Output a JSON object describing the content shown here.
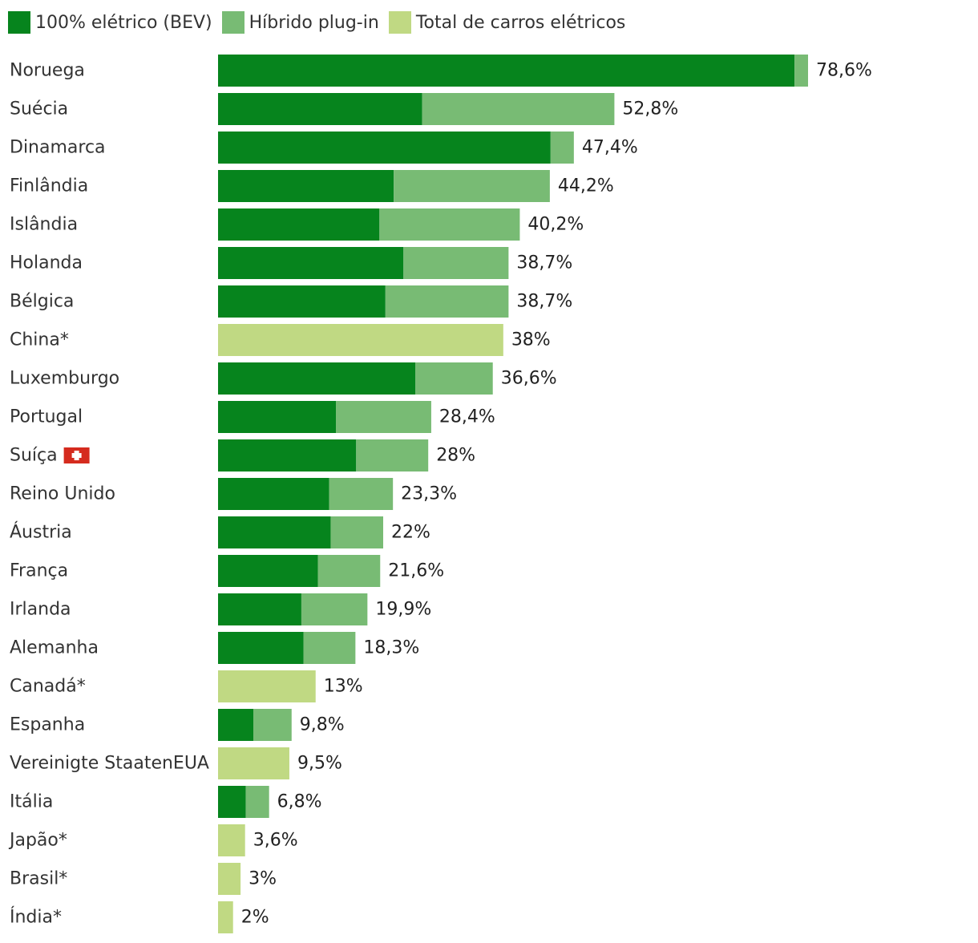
{
  "chart_data": {
    "type": "bar",
    "orientation": "horizontal",
    "stacked": true,
    "legend_position": "top-left",
    "grid": false,
    "xlim": [
      0,
      80
    ],
    "legend": [
      {
        "key": "bev",
        "label": "100% elétrico (BEV)",
        "color": "#06841d"
      },
      {
        "key": "phev",
        "label": "Híbrido plug-in",
        "color": "#78bb74"
      },
      {
        "key": "total",
        "label": "Total de carros elétricos",
        "color": "#c0d983"
      }
    ],
    "rows": [
      {
        "category": "Noruega",
        "bev": 76.8,
        "phev": 1.8,
        "total": null,
        "label": "78,6%",
        "flag": null
      },
      {
        "category": "Suécia",
        "bev": 27.2,
        "phev": 25.6,
        "total": null,
        "label": "52,8%",
        "flag": null
      },
      {
        "category": "Dinamarca",
        "bev": 44.3,
        "phev": 3.1,
        "total": null,
        "label": "47,4%",
        "flag": null
      },
      {
        "category": "Finlândia",
        "bev": 23.4,
        "phev": 20.8,
        "total": null,
        "label": "44,2%",
        "flag": null
      },
      {
        "category": "Islândia",
        "bev": 21.5,
        "phev": 18.7,
        "total": null,
        "label": "40,2%",
        "flag": null
      },
      {
        "category": "Holanda",
        "bev": 24.7,
        "phev": 14.0,
        "total": null,
        "label": "38,7%",
        "flag": null
      },
      {
        "category": "Bélgica",
        "bev": 22.3,
        "phev": 16.4,
        "total": null,
        "label": "38,7%",
        "flag": null
      },
      {
        "category": "China*",
        "bev": null,
        "phev": null,
        "total": 38,
        "label": "38%",
        "flag": null
      },
      {
        "category": "Luxemburgo",
        "bev": 26.3,
        "phev": 10.3,
        "total": null,
        "label": "36,6%",
        "flag": null
      },
      {
        "category": "Portugal",
        "bev": 15.7,
        "phev": 12.7,
        "total": null,
        "label": "28,4%",
        "flag": null
      },
      {
        "category": "Suíça",
        "bev": 18.4,
        "phev": 9.6,
        "total": null,
        "label": "28%",
        "flag": "swiss-flag"
      },
      {
        "category": "Reino Unido",
        "bev": 14.8,
        "phev": 8.5,
        "total": null,
        "label": "23,3%",
        "flag": null
      },
      {
        "category": "Áustria",
        "bev": 15.0,
        "phev": 7.0,
        "total": null,
        "label": "22%",
        "flag": null
      },
      {
        "category": "França",
        "bev": 13.3,
        "phev": 8.3,
        "total": null,
        "label": "21,6%",
        "flag": null
      },
      {
        "category": "Irlanda",
        "bev": 11.1,
        "phev": 8.8,
        "total": null,
        "label": "19,9%",
        "flag": null
      },
      {
        "category": "Alemanha",
        "bev": 11.4,
        "phev": 6.9,
        "total": null,
        "label": "18,3%",
        "flag": null
      },
      {
        "category": "Canadá*",
        "bev": null,
        "phev": null,
        "total": 13,
        "label": "13%",
        "flag": null
      },
      {
        "category": "Espanha",
        "bev": 4.7,
        "phev": 5.1,
        "total": null,
        "label": "9,8%",
        "flag": null
      },
      {
        "category": "Vereinigte StaatenEUA",
        "bev": null,
        "phev": null,
        "total": 9.5,
        "label": "9,5%",
        "flag": null
      },
      {
        "category": "Itália",
        "bev": 3.7,
        "phev": 3.1,
        "total": null,
        "label": "6,8%",
        "flag": null
      },
      {
        "category": "Japão*",
        "bev": null,
        "phev": null,
        "total": 3.6,
        "label": "3,6%",
        "flag": null
      },
      {
        "category": "Brasil*",
        "bev": null,
        "phev": null,
        "total": 3,
        "label": "3%",
        "flag": null
      },
      {
        "category": "Índia*",
        "bev": null,
        "phev": null,
        "total": 2,
        "label": "2%",
        "flag": null
      }
    ]
  }
}
